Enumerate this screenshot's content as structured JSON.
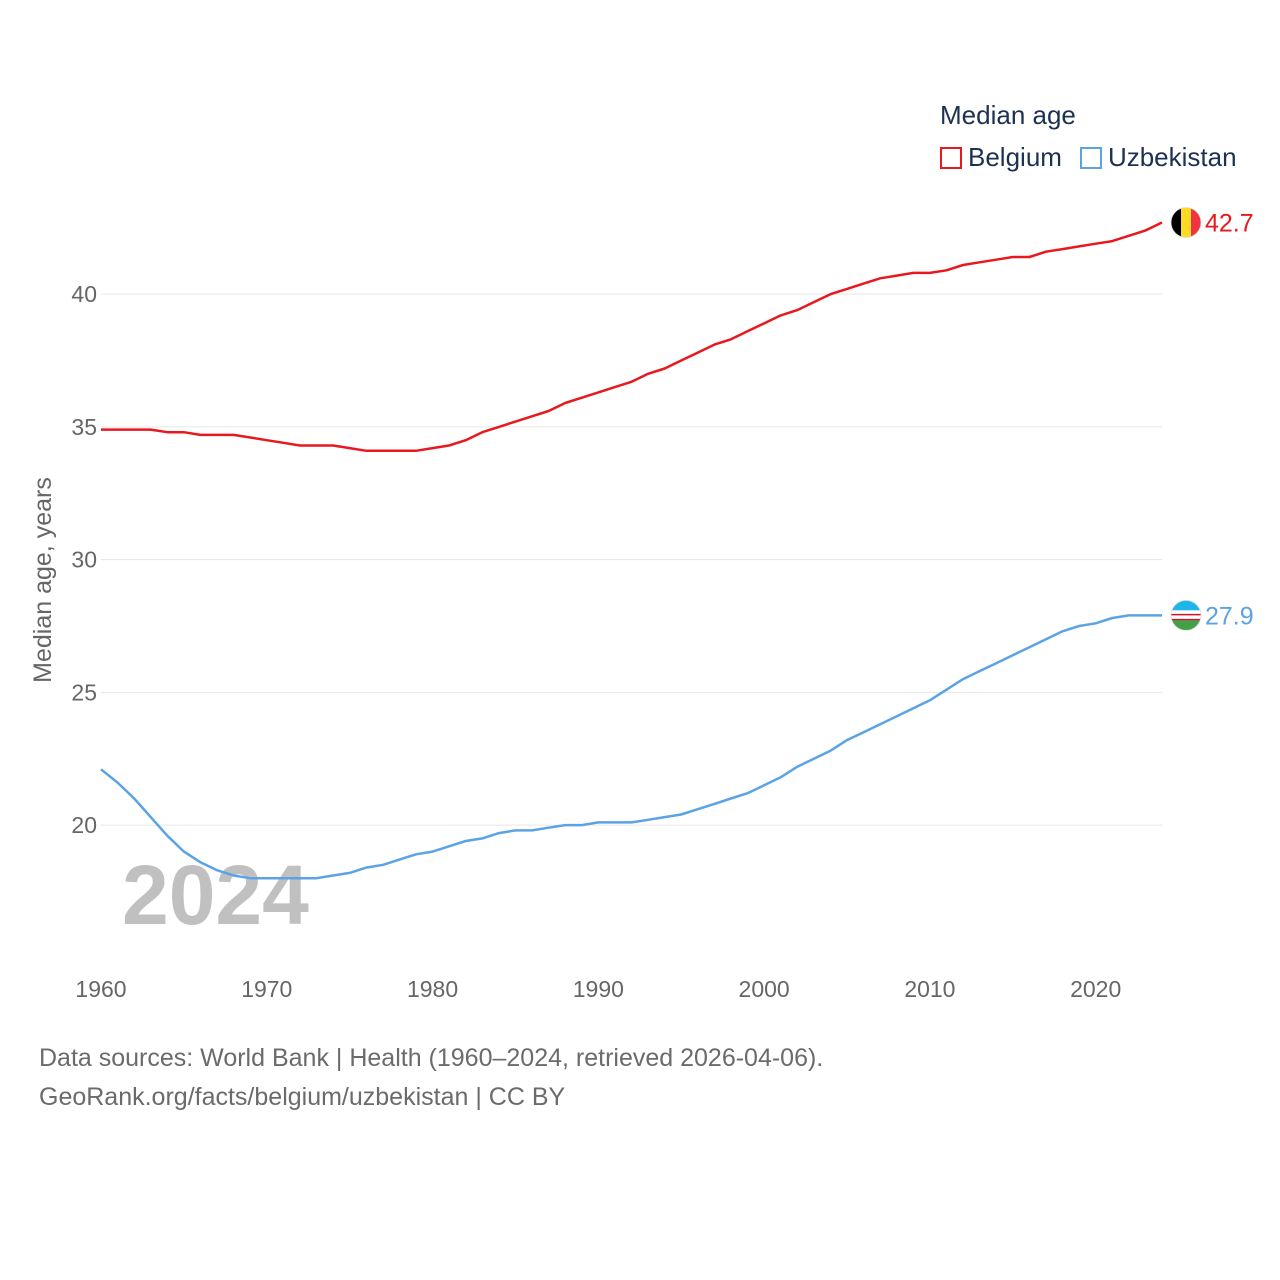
{
  "legend": {
    "title": "Median age",
    "items": [
      {
        "name": "Belgium",
        "color": "#e8191e"
      },
      {
        "name": "Uzbekistan",
        "color": "#5ba3e4"
      }
    ]
  },
  "footer": {
    "line1": "Data sources: World Bank | Health (1960–2024, retrieved 2026-04-06).",
    "line2": "GeoRank.org/facts/belgium/uzbekistan | CC BY"
  },
  "chart_data": {
    "type": "line",
    "title": "Median age",
    "xlabel": "",
    "ylabel": "Median age, years",
    "xlim": [
      1960,
      2024
    ],
    "ylim": [
      16.5,
      44
    ],
    "x_ticks": [
      1960,
      1970,
      1980,
      1990,
      2000,
      2010,
      2020
    ],
    "y_ticks": [
      20,
      25,
      30,
      35,
      40
    ],
    "grid": true,
    "year_stamp": "2024",
    "series": [
      {
        "name": "Belgium",
        "color": "#e8191e",
        "end_label": "42.7",
        "icon": "belgium-flag-icon",
        "x": [
          1960,
          1961,
          1962,
          1963,
          1964,
          1965,
          1966,
          1967,
          1968,
          1969,
          1970,
          1971,
          1972,
          1973,
          1974,
          1975,
          1976,
          1977,
          1978,
          1979,
          1980,
          1981,
          1982,
          1983,
          1984,
          1985,
          1986,
          1987,
          1988,
          1989,
          1990,
          1991,
          1992,
          1993,
          1994,
          1995,
          1996,
          1997,
          1998,
          1999,
          2000,
          2001,
          2002,
          2003,
          2004,
          2005,
          2006,
          2007,
          2008,
          2009,
          2010,
          2011,
          2012,
          2013,
          2014,
          2015,
          2016,
          2017,
          2018,
          2019,
          2020,
          2021,
          2022,
          2023,
          2024
        ],
        "values": [
          34.9,
          34.9,
          34.9,
          34.9,
          34.8,
          34.8,
          34.7,
          34.7,
          34.7,
          34.6,
          34.5,
          34.4,
          34.3,
          34.3,
          34.3,
          34.2,
          34.1,
          34.1,
          34.1,
          34.1,
          34.2,
          34.3,
          34.5,
          34.8,
          35.0,
          35.2,
          35.4,
          35.6,
          35.9,
          36.1,
          36.3,
          36.5,
          36.7,
          37.0,
          37.2,
          37.5,
          37.8,
          38.1,
          38.3,
          38.6,
          38.9,
          39.2,
          39.4,
          39.7,
          40.0,
          40.2,
          40.4,
          40.6,
          40.7,
          40.8,
          40.8,
          40.9,
          41.1,
          41.2,
          41.3,
          41.4,
          41.4,
          41.6,
          41.7,
          41.8,
          41.9,
          42.0,
          42.2,
          42.4,
          42.7
        ]
      },
      {
        "name": "Uzbekistan",
        "color": "#5ba3e4",
        "end_label": "27.9",
        "icon": "uzbekistan-flag-icon",
        "x": [
          1960,
          1961,
          1962,
          1963,
          1964,
          1965,
          1966,
          1967,
          1968,
          1969,
          1970,
          1971,
          1972,
          1973,
          1974,
          1975,
          1976,
          1977,
          1978,
          1979,
          1980,
          1981,
          1982,
          1983,
          1984,
          1985,
          1986,
          1987,
          1988,
          1989,
          1990,
          1991,
          1992,
          1993,
          1994,
          1995,
          1996,
          1997,
          1998,
          1999,
          2000,
          2001,
          2002,
          2003,
          2004,
          2005,
          2006,
          2007,
          2008,
          2009,
          2010,
          2011,
          2012,
          2013,
          2014,
          2015,
          2016,
          2017,
          2018,
          2019,
          2020,
          2021,
          2022,
          2023,
          2024
        ],
        "values": [
          22.1,
          21.6,
          21.0,
          20.3,
          19.6,
          19.0,
          18.6,
          18.3,
          18.1,
          18.0,
          18.0,
          18.0,
          18.0,
          18.0,
          18.1,
          18.2,
          18.4,
          18.5,
          18.7,
          18.9,
          19.0,
          19.2,
          19.4,
          19.5,
          19.7,
          19.8,
          19.8,
          19.9,
          20.0,
          20.0,
          20.1,
          20.1,
          20.1,
          20.2,
          20.3,
          20.4,
          20.6,
          20.8,
          21.0,
          21.2,
          21.5,
          21.8,
          22.2,
          22.5,
          22.8,
          23.2,
          23.5,
          23.8,
          24.1,
          24.4,
          24.7,
          25.1,
          25.5,
          25.8,
          26.1,
          26.4,
          26.7,
          27.0,
          27.3,
          27.5,
          27.6,
          27.8,
          27.9,
          27.9,
          27.9
        ]
      }
    ]
  }
}
